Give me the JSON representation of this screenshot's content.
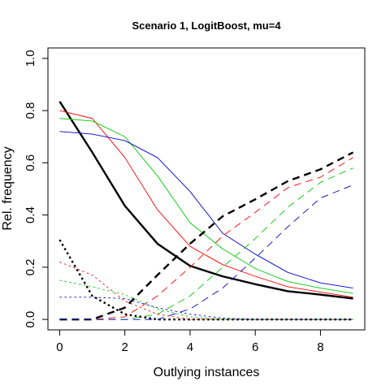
{
  "chart_data": {
    "type": "line",
    "title": "Scenario 1, LogitBoost, mu=4",
    "xlabel": "Outlying instances",
    "ylabel": "Rel. frequency",
    "xlim": [
      -0.36,
      9.36
    ],
    "ylim": [
      -0.04,
      1.04
    ],
    "x_ticks": [
      0,
      2,
      4,
      6,
      8
    ],
    "y_ticks": [
      0.0,
      0.2,
      0.4,
      0.6,
      0.8,
      1.0
    ],
    "x_tick_labels": [
      "0",
      "2",
      "4",
      "6",
      "8"
    ],
    "y_tick_labels": [
      "0.0",
      "0.2",
      "0.4",
      "0.6",
      "0.8",
      "1.0"
    ],
    "x": [
      0,
      1,
      2,
      3,
      4,
      5,
      6,
      7,
      8,
      9
    ],
    "grid": false,
    "legend": "none",
    "series": [
      {
        "color": "#000000",
        "dash": "solid",
        "width": 2.4,
        "values": [
          0.835,
          0.64,
          0.435,
          0.29,
          0.205,
          0.165,
          0.135,
          0.108,
          0.095,
          0.08
        ]
      },
      {
        "color": "#ff0000",
        "dash": "solid",
        "width": 0.9,
        "values": [
          0.8,
          0.77,
          0.62,
          0.42,
          0.28,
          0.21,
          0.165,
          0.125,
          0.105,
          0.085
        ]
      },
      {
        "color": "#00cc00",
        "dash": "solid",
        "width": 0.9,
        "values": [
          0.77,
          0.76,
          0.7,
          0.55,
          0.37,
          0.27,
          0.195,
          0.145,
          0.12,
          0.1
        ]
      },
      {
        "color": "#0000cc",
        "dash": "solid",
        "width": 0.9,
        "values": [
          0.72,
          0.71,
          0.685,
          0.62,
          0.49,
          0.33,
          0.25,
          0.18,
          0.14,
          0.12
        ]
      },
      {
        "color": "#000000",
        "dash": "dashed",
        "width": 2.4,
        "values": [
          0.0,
          0.0,
          0.045,
          0.17,
          0.29,
          0.395,
          0.46,
          0.53,
          0.575,
          0.64
        ]
      },
      {
        "color": "#ff0000",
        "dash": "dashed",
        "width": 0.9,
        "values": [
          0.0,
          0.0,
          0.01,
          0.09,
          0.2,
          0.32,
          0.41,
          0.505,
          0.545,
          0.62
        ]
      },
      {
        "color": "#00cc00",
        "dash": "dashed",
        "width": 0.9,
        "values": [
          0.0,
          0.0,
          0.0,
          0.02,
          0.09,
          0.2,
          0.31,
          0.43,
          0.525,
          0.58
        ]
      },
      {
        "color": "#0000cc",
        "dash": "dashed",
        "width": 0.9,
        "values": [
          0.0,
          0.0,
          0.0,
          0.0,
          0.04,
          0.12,
          0.235,
          0.355,
          0.465,
          0.515
        ]
      },
      {
        "color": "#000000",
        "dash": "dotted",
        "width": 2.4,
        "values": [
          0.305,
          0.09,
          0.02,
          0.0,
          0.0,
          0.0,
          0.0,
          0.0,
          0.0,
          0.0
        ]
      },
      {
        "color": "#ff0000",
        "dash": "dotted",
        "width": 0.9,
        "values": [
          0.22,
          0.17,
          0.07,
          0.02,
          0.0,
          0.0,
          0.0,
          0.0,
          0.0,
          0.0
        ]
      },
      {
        "color": "#00cc00",
        "dash": "dotted",
        "width": 0.9,
        "values": [
          0.15,
          0.125,
          0.095,
          0.04,
          0.01,
          0.0,
          0.0,
          0.0,
          0.0,
          0.0
        ]
      },
      {
        "color": "#0000cc",
        "dash": "dotted",
        "width": 0.9,
        "values": [
          0.085,
          0.085,
          0.08,
          0.045,
          0.02,
          0.005,
          0.0,
          0.0,
          0.0,
          0.0
        ]
      }
    ]
  }
}
